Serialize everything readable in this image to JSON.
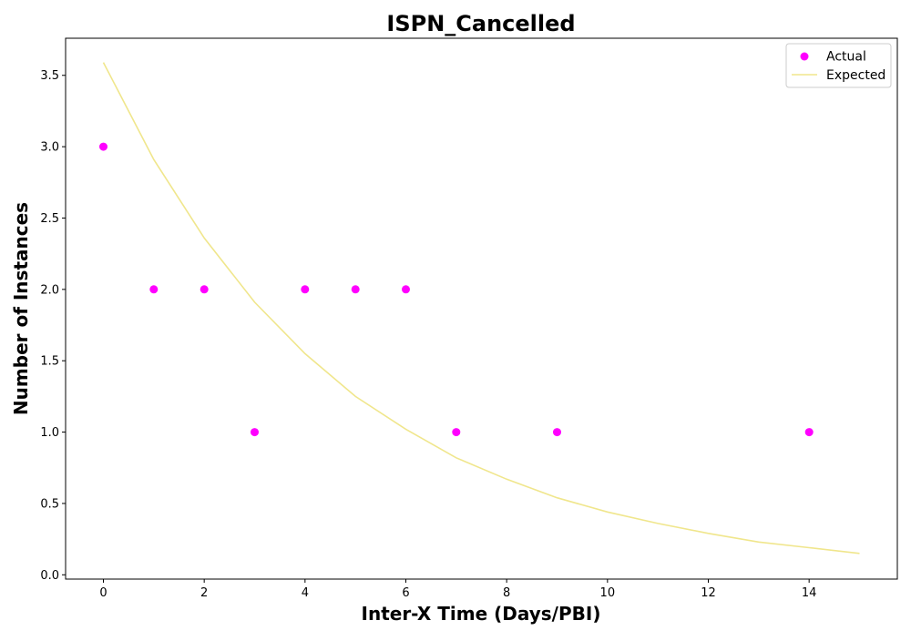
{
  "chart_data": {
    "type": "scatter",
    "title": "ISPN_Cancelled",
    "xlabel": "Inter-X Time (Days/PBI)",
    "ylabel": "Number of Instances",
    "xlim": [
      -0.75,
      15.75
    ],
    "ylim": [
      -0.03,
      3.76
    ],
    "x_ticks": [
      0,
      2,
      4,
      6,
      8,
      10,
      12,
      14
    ],
    "y_ticks": [
      0.0,
      0.5,
      1.0,
      1.5,
      2.0,
      2.5,
      3.0,
      3.5
    ],
    "grid": false,
    "legend_position": "top-right",
    "series": [
      {
        "name": "Actual",
        "type": "scatter",
        "color": "#ff00ff",
        "x": [
          0,
          1,
          2,
          3,
          4,
          5,
          6,
          7,
          9,
          14
        ],
        "y": [
          3,
          2,
          2,
          1,
          2,
          2,
          2,
          1,
          1,
          1
        ]
      },
      {
        "name": "Expected",
        "type": "line",
        "color": "#f0e68c",
        "x": [
          0,
          1,
          2,
          3,
          4,
          5,
          6,
          7,
          8,
          9,
          10,
          11,
          12,
          13,
          14,
          15
        ],
        "y": [
          3.59,
          2.91,
          2.36,
          1.91,
          1.55,
          1.25,
          1.02,
          0.82,
          0.67,
          0.54,
          0.44,
          0.36,
          0.29,
          0.23,
          0.19,
          0.15
        ]
      }
    ]
  }
}
